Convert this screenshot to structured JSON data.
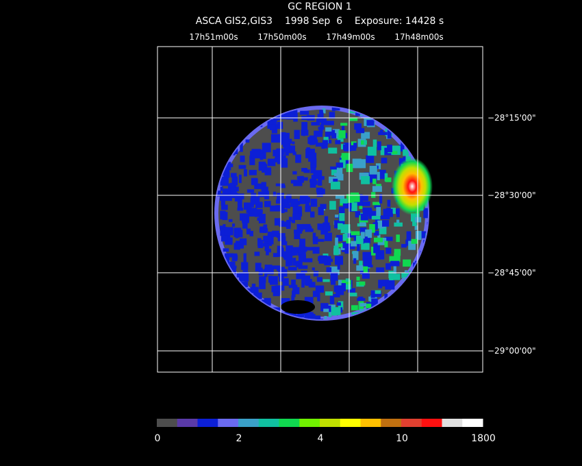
{
  "title": "GC REGION 1",
  "subtitle": "ASCA GIS2,GIS3    1998 Sep  6    Exposure: 14428 s",
  "ra_labels": [
    "17h51m00s",
    "17h50m00s",
    "17h49m00s",
    "17h48m00s"
  ],
  "dec_labels": [
    "−28°15'00\"",
    "−28°30'00\"",
    "−28°45'00\"",
    "−29°00'00\""
  ],
  "colorbar": {
    "colors": [
      "#4d4d4d",
      "#5a3aa8",
      "#0c1fd6",
      "#6a6af0",
      "#3aa0c8",
      "#10c0a0",
      "#10d850",
      "#70f000",
      "#c0e000",
      "#ffff00",
      "#ffc000",
      "#c07010",
      "#e04030",
      "#ff1010",
      "#e0e0e0",
      "#ffffff"
    ],
    "labels": [
      "0",
      "2",
      "4",
      "10",
      "1800"
    ]
  }
}
